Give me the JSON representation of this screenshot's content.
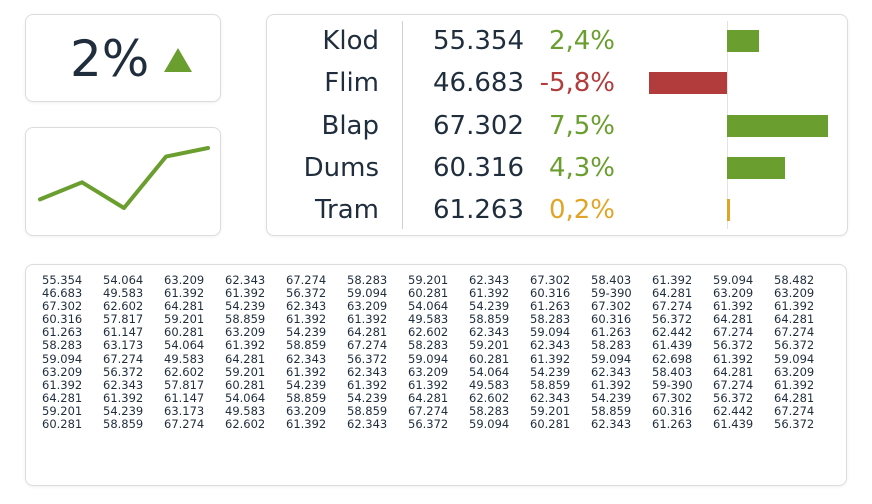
{
  "kpi": {
    "value": "2%",
    "trend": "up",
    "trend_color": "#6a9e2e"
  },
  "sparkline": {
    "color": "#6a9e2e",
    "values": [
      2,
      4,
      1,
      7,
      8
    ]
  },
  "metrics": {
    "colors": {
      "positive": "#6a9e2e",
      "negative": "#b23b3b",
      "neutral": "#e0a526"
    },
    "items": [
      {
        "name": "Klod",
        "value": "55.354",
        "change": "2,4%",
        "change_num": 2.4,
        "status": "positive"
      },
      {
        "name": "Flim",
        "value": "46.683",
        "change": "-5,8%",
        "change_num": -5.8,
        "status": "negative"
      },
      {
        "name": "Blap",
        "value": "67.302",
        "change": "7,5%",
        "change_num": 7.5,
        "status": "positive"
      },
      {
        "name": "Dums",
        "value": "60.316",
        "change": "4,3%",
        "change_num": 4.3,
        "status": "positive"
      },
      {
        "name": "Tram",
        "value": "61.263",
        "change": "0,2%",
        "change_num": 0.2,
        "status": "neutral"
      }
    ]
  },
  "table": {
    "rows": [
      [
        "55.354",
        "54.064",
        "63.209",
        "62.343",
        "67.274",
        "58.283",
        "59.201",
        "62.343",
        "67.302",
        "58.403",
        "61.392",
        "59.094",
        "58.482"
      ],
      [
        "46.683",
        "49.583",
        "61.392",
        "61.392",
        "56.372",
        "59.094",
        "60.281",
        "61.392",
        "60.316",
        "59-390",
        "64.281",
        "63.209",
        "63.209"
      ],
      [
        "67.302",
        "62.602",
        "64.281",
        "54.239",
        "62.343",
        "63.209",
        "54.064",
        "54.239",
        "61.263",
        "67.302",
        "67.274",
        "61.392",
        "61.392"
      ],
      [
        "60.316",
        "57.817",
        "59.201",
        "58.859",
        "61.392",
        "61.392",
        "49.583",
        "58.859",
        "58.283",
        "60.316",
        "56.372",
        "64.281",
        "64.281"
      ],
      [
        "61.263",
        "61.147",
        "60.281",
        "63.209",
        "54.239",
        "64.281",
        "62.602",
        "62.343",
        "59.094",
        "61.263",
        "62.442",
        "67.274",
        "67.274"
      ],
      [
        "58.283",
        "63.173",
        "54.064",
        "61.392",
        "58.859",
        "67.274",
        "58.283",
        "59.201",
        "62.343",
        "58.283",
        "61.439",
        "56.372",
        "56.372"
      ],
      [
        "59.094",
        "67.274",
        "49.583",
        "64.281",
        "62.343",
        "56.372",
        "59.094",
        "60.281",
        "61.392",
        "59.094",
        "62.698",
        "61.392",
        "59.094"
      ],
      [
        "63.209",
        "56.372",
        "62.602",
        "59.201",
        "61.392",
        "62.343",
        "63.209",
        "54.064",
        "54.239",
        "62.343",
        "58.403",
        "64.281",
        "63.209"
      ],
      [
        "61.392",
        "62.343",
        "57.817",
        "60.281",
        "54.239",
        "61.392",
        "61.392",
        "49.583",
        "58.859",
        "61.392",
        "59-390",
        "67.274",
        "61.392"
      ],
      [
        "64.281",
        "61.392",
        "61.147",
        "54.064",
        "58.859",
        "54.239",
        "64.281",
        "62.602",
        "62.343",
        "54.239",
        "67.302",
        "56.372",
        "64.281"
      ],
      [
        "59.201",
        "54.239",
        "63.173",
        "49.583",
        "63.209",
        "58.859",
        "67.274",
        "58.283",
        "59.201",
        "58.859",
        "60.316",
        "62.442",
        "67.274"
      ],
      [
        "60.281",
        "58.859",
        "67.274",
        "62.602",
        "61.392",
        "62.343",
        "56.372",
        "59.094",
        "60.281",
        "62.343",
        "61.263",
        "61.439",
        "56.372"
      ]
    ]
  }
}
